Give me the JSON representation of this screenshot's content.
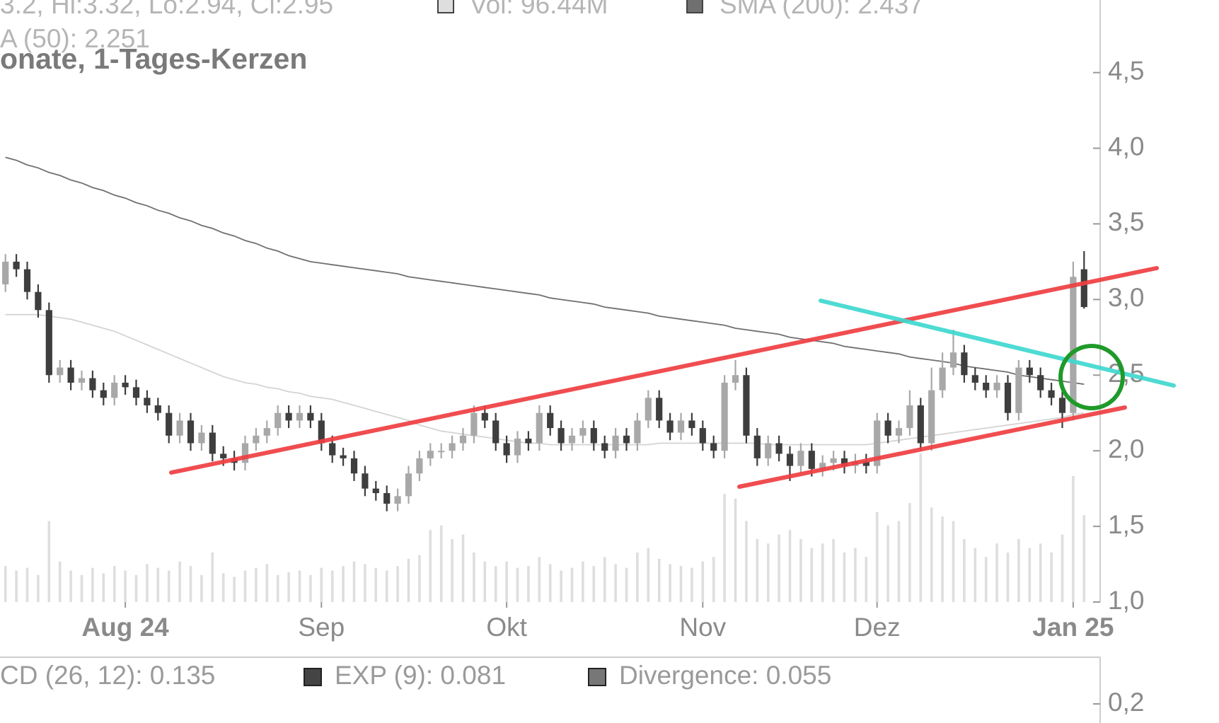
{
  "chart_data": {
    "type": "candlestick",
    "title": "onate, 1-Tages-Kerzen",
    "info": "3.2, Hi:3.32, Lo:2.94, Cl:2.95",
    "categories": [
      null,
      null,
      null,
      null,
      null,
      null,
      null,
      null,
      null,
      null,
      null,
      "Aug 24",
      null,
      null,
      null,
      null,
      null,
      null,
      null,
      null,
      null,
      null,
      null,
      null,
      null,
      null,
      null,
      null,
      null,
      "Sep",
      null,
      null,
      null,
      null,
      null,
      null,
      null,
      null,
      null,
      null,
      null,
      null,
      null,
      null,
      null,
      null,
      "Okt",
      null,
      null,
      null,
      null,
      null,
      null,
      null,
      null,
      null,
      null,
      null,
      null,
      null,
      null,
      null,
      null,
      null,
      "Nov",
      null,
      null,
      null,
      null,
      null,
      null,
      null,
      null,
      null,
      null,
      null,
      null,
      null,
      null,
      null,
      "Dez",
      null,
      null,
      null,
      null,
      null,
      null,
      null,
      null,
      null,
      null,
      null,
      null,
      null,
      null,
      null,
      null,
      null,
      "Jan 25",
      null
    ],
    "open": [
      3.1,
      3.25,
      3.2,
      3.05,
      2.93,
      2.5,
      2.55,
      2.45,
      2.48,
      2.4,
      2.35,
      2.45,
      2.42,
      2.35,
      2.3,
      2.25,
      2.1,
      2.2,
      2.05,
      2.12,
      1.98,
      1.95,
      1.92,
      2.05,
      2.1,
      2.15,
      2.25,
      2.2,
      2.25,
      2.2,
      2.05,
      1.97,
      1.95,
      1.85,
      1.75,
      1.72,
      1.65,
      1.7,
      1.85,
      1.95,
      2.0,
      2.0,
      2.05,
      2.1,
      2.25,
      2.2,
      2.05,
      1.97,
      2.08,
      2.05,
      2.25,
      2.15,
      2.05,
      2.1,
      2.15,
      2.05,
      2.0,
      2.1,
      2.05,
      2.2,
      2.35,
      2.2,
      2.12,
      2.2,
      2.15,
      2.05,
      2.0,
      2.45,
      2.5,
      2.1,
      1.95,
      2.05,
      1.98,
      1.9,
      2.0,
      1.88,
      1.92,
      1.95,
      1.9,
      1.93,
      1.9,
      2.2,
      2.1,
      2.15,
      2.3,
      2.05,
      2.4,
      2.55,
      2.65,
      2.5,
      2.45,
      2.4,
      2.45,
      2.25,
      2.55,
      2.5,
      2.4,
      2.35,
      2.25,
      3.2
    ],
    "high": [
      3.3,
      3.3,
      3.25,
      3.1,
      2.98,
      2.6,
      2.6,
      2.53,
      2.53,
      2.45,
      2.5,
      2.5,
      2.47,
      2.4,
      2.35,
      2.3,
      2.25,
      2.25,
      2.17,
      2.17,
      2.03,
      2.0,
      2.1,
      2.15,
      2.2,
      2.3,
      2.3,
      2.3,
      2.3,
      2.25,
      2.1,
      2.02,
      2.0,
      1.9,
      1.8,
      1.77,
      1.75,
      1.9,
      2.0,
      2.05,
      2.05,
      2.1,
      2.15,
      2.3,
      2.3,
      2.25,
      2.1,
      2.13,
      2.13,
      2.3,
      2.3,
      2.2,
      2.15,
      2.2,
      2.2,
      2.1,
      2.15,
      2.15,
      2.25,
      2.4,
      2.4,
      2.25,
      2.25,
      2.25,
      2.2,
      2.1,
      2.5,
      2.6,
      2.55,
      2.15,
      2.1,
      2.1,
      2.03,
      2.05,
      2.05,
      1.97,
      2.0,
      2.0,
      1.98,
      1.98,
      2.25,
      2.25,
      2.2,
      2.4,
      2.35,
      2.55,
      2.65,
      2.8,
      2.7,
      2.55,
      2.5,
      2.5,
      2.5,
      2.6,
      2.6,
      2.55,
      2.45,
      2.4,
      3.25,
      3.32
    ],
    "low": [
      3.05,
      3.15,
      3.0,
      2.88,
      2.45,
      2.45,
      2.4,
      2.4,
      2.35,
      2.3,
      2.3,
      2.37,
      2.3,
      2.25,
      2.2,
      2.05,
      2.05,
      2.0,
      2.0,
      1.93,
      1.9,
      1.87,
      1.87,
      2.0,
      2.05,
      2.1,
      2.15,
      2.15,
      2.15,
      2.0,
      1.92,
      1.9,
      1.8,
      1.7,
      1.67,
      1.6,
      1.6,
      1.65,
      1.8,
      1.9,
      1.95,
      1.95,
      2.0,
      2.05,
      2.15,
      2.0,
      1.92,
      1.92,
      2.0,
      2.0,
      2.1,
      2.0,
      2.0,
      2.05,
      2.0,
      1.95,
      1.95,
      2.0,
      2.0,
      2.15,
      2.15,
      2.07,
      2.07,
      2.1,
      2.0,
      1.95,
      1.95,
      2.4,
      2.05,
      1.9,
      1.9,
      1.93,
      1.8,
      1.85,
      1.83,
      1.83,
      1.87,
      1.85,
      1.85,
      1.85,
      1.85,
      2.05,
      2.05,
      2.1,
      2.0,
      2.0,
      2.35,
      2.5,
      2.45,
      2.4,
      2.35,
      2.35,
      2.2,
      2.2,
      2.45,
      2.35,
      2.3,
      2.15,
      2.2,
      2.94
    ],
    "close": [
      3.25,
      3.2,
      3.05,
      2.93,
      2.5,
      2.55,
      2.45,
      2.48,
      2.4,
      2.35,
      2.45,
      2.42,
      2.35,
      2.3,
      2.25,
      2.1,
      2.2,
      2.05,
      2.12,
      1.98,
      1.95,
      1.92,
      2.05,
      2.1,
      2.15,
      2.25,
      2.2,
      2.25,
      2.2,
      2.05,
      1.97,
      1.95,
      1.85,
      1.75,
      1.72,
      1.65,
      1.7,
      1.85,
      1.95,
      2.0,
      2.0,
      2.05,
      2.1,
      2.25,
      2.2,
      2.05,
      1.97,
      2.08,
      2.05,
      2.25,
      2.15,
      2.05,
      2.1,
      2.15,
      2.05,
      2.0,
      2.1,
      2.05,
      2.2,
      2.35,
      2.2,
      2.12,
      2.2,
      2.15,
      2.05,
      2.0,
      2.45,
      2.5,
      2.1,
      1.95,
      2.05,
      1.98,
      1.9,
      2.0,
      1.88,
      1.92,
      1.95,
      1.9,
      1.93,
      1.9,
      2.2,
      2.1,
      2.15,
      2.3,
      2.05,
      2.4,
      2.55,
      2.65,
      2.5,
      2.45,
      2.4,
      2.45,
      2.25,
      2.55,
      2.5,
      2.4,
      2.35,
      2.25,
      3.15,
      2.95
    ],
    "up_color": "#a8a8a8",
    "down_color": "#3e3e3e",
    "series": [
      {
        "name": "Vol: 96.44M",
        "type": "volume",
        "color": "#dedede",
        "values": [
          40,
          35,
          38,
          30,
          90,
          45,
          35,
          30,
          38,
          32,
          40,
          35,
          30,
          42,
          38,
          35,
          45,
          40,
          30,
          55,
          32,
          28,
          35,
          38,
          42,
          30,
          33,
          35,
          30,
          38,
          35,
          40,
          45,
          42,
          38,
          35,
          40,
          48,
          52,
          80,
          85,
          70,
          75,
          55,
          45,
          40,
          45,
          38,
          40,
          50,
          42,
          35,
          38,
          45,
          40,
          50,
          42,
          38,
          55,
          60,
          48,
          42,
          40,
          38,
          45,
          50,
          120,
          115,
          90,
          70,
          65,
          75,
          80,
          70,
          60,
          65,
          70,
          55,
          60,
          50,
          100,
          85,
          90,
          110,
          165,
          105,
          95,
          90,
          70,
          60,
          50,
          65,
          55,
          70,
          60,
          65,
          55,
          75,
          140,
          96.44
        ]
      },
      {
        "name": "SMA (200): 2.437",
        "type": "line",
        "color": "#707070",
        "values": [
          3.94,
          3.92,
          3.89,
          3.87,
          3.84,
          3.82,
          3.79,
          3.77,
          3.74,
          3.72,
          3.69,
          3.67,
          3.64,
          3.62,
          3.59,
          3.57,
          3.54,
          3.52,
          3.49,
          3.47,
          3.44,
          3.42,
          3.39,
          3.37,
          3.34,
          3.32,
          3.29,
          3.27,
          3.25,
          3.24,
          3.23,
          3.22,
          3.21,
          3.2,
          3.19,
          3.18,
          3.17,
          3.15,
          3.14,
          3.13,
          3.12,
          3.11,
          3.1,
          3.09,
          3.08,
          3.07,
          3.06,
          3.05,
          3.04,
          3.03,
          3.01,
          3.0,
          2.99,
          2.98,
          2.97,
          2.95,
          2.94,
          2.93,
          2.92,
          2.91,
          2.89,
          2.88,
          2.87,
          2.86,
          2.85,
          2.84,
          2.83,
          2.81,
          2.8,
          2.79,
          2.78,
          2.77,
          2.75,
          2.74,
          2.73,
          2.72,
          2.71,
          2.69,
          2.68,
          2.67,
          2.66,
          2.65,
          2.64,
          2.62,
          2.61,
          2.6,
          2.59,
          2.58,
          2.56,
          2.55,
          2.54,
          2.53,
          2.52,
          2.5,
          2.49,
          2.48,
          2.47,
          2.46,
          2.45,
          2.44
        ]
      },
      {
        "name": "A (50): 2.251",
        "type": "line",
        "color": "#d4d4d4",
        "values": [
          2.9,
          2.9,
          2.9,
          2.9,
          2.89,
          2.88,
          2.87,
          2.85,
          2.83,
          2.81,
          2.79,
          2.76,
          2.73,
          2.7,
          2.67,
          2.64,
          2.61,
          2.58,
          2.55,
          2.52,
          2.49,
          2.47,
          2.45,
          2.44,
          2.42,
          2.41,
          2.39,
          2.38,
          2.36,
          2.35,
          2.34,
          2.32,
          2.3,
          2.28,
          2.26,
          2.24,
          2.22,
          2.2,
          2.17,
          2.15,
          2.13,
          2.12,
          2.11,
          2.1,
          2.09,
          2.08,
          2.07,
          2.06,
          2.05,
          2.05,
          2.04,
          2.04,
          2.04,
          2.04,
          2.04,
          2.04,
          2.04,
          2.04,
          2.04,
          2.04,
          2.05,
          2.05,
          2.05,
          2.05,
          2.05,
          2.05,
          2.05,
          2.05,
          2.05,
          2.05,
          2.04,
          2.04,
          2.04,
          2.04,
          2.04,
          2.04,
          2.04,
          2.04,
          2.04,
          2.04,
          2.05,
          2.06,
          2.07,
          2.08,
          2.09,
          2.1,
          2.11,
          2.12,
          2.13,
          2.14,
          2.15,
          2.16,
          2.17,
          2.18,
          2.19,
          2.2,
          2.21,
          2.22,
          2.24,
          2.25
        ]
      }
    ],
    "ylim": [
      1.0,
      4.98
    ],
    "yticks": [
      {
        "value": 1.0,
        "label": "1,0"
      },
      {
        "value": 1.5,
        "label": "1,5"
      },
      {
        "value": 2.0,
        "label": "2,0"
      },
      {
        "value": 2.5,
        "label": "2,5"
      },
      {
        "value": 3.0,
        "label": "3,0"
      },
      {
        "value": 3.5,
        "label": "3,5"
      },
      {
        "value": 4.0,
        "label": "4,0"
      },
      {
        "value": 4.5,
        "label": "4,5"
      }
    ],
    "macd_legend": [
      "CD (26, 12): 0.135",
      "EXP (9): 0.081",
      "Divergence: 0.055"
    ],
    "macd_colors": [
      "#444444",
      "#777777"
    ],
    "macd_yticks": [
      {
        "value": 0.2,
        "label": "0,2"
      }
    ]
  }
}
